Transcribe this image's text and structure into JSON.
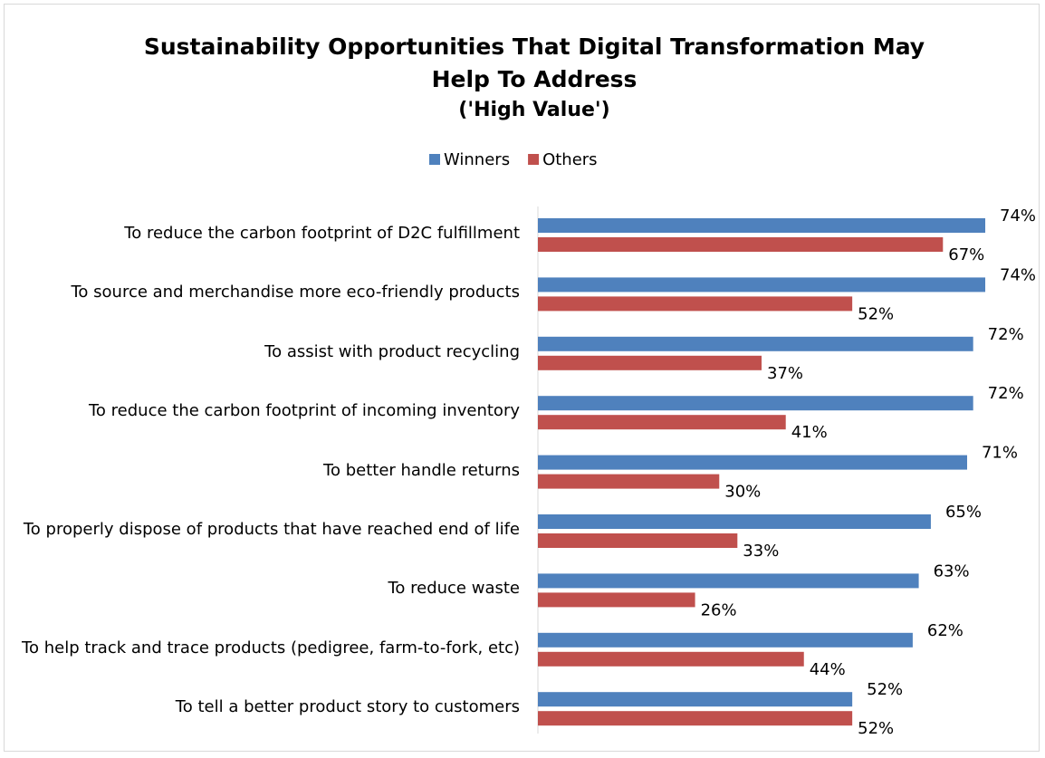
{
  "chart_data": {
    "type": "bar",
    "orientation": "horizontal",
    "title": "Sustainability Opportunities That Digital Transformation May Help To Address",
    "subtitle": "('High Value')",
    "legend_position": "top",
    "categories": [
      "To reduce the carbon footprint of D2C fulfillment",
      "To source and merchandise more eco-friendly products",
      "To assist with product recycling",
      "To reduce the carbon footprint of incoming inventory",
      "To better handle returns",
      "To properly dispose of products that have reached end of life",
      "To reduce waste",
      "To help track and trace products (pedigree, farm-to-fork, etc)",
      "To tell a better product story to customers"
    ],
    "series": [
      {
        "name": "Winners",
        "color": "#4f81bd",
        "values": [
          74,
          74,
          72,
          72,
          71,
          65,
          63,
          62,
          52
        ],
        "value_labels": [
          "74%",
          "74%",
          "72%",
          "72%",
          "71%",
          "65%",
          "63%",
          "62%",
          "52%"
        ]
      },
      {
        "name": "Others",
        "color": "#c0504d",
        "values": [
          67,
          52,
          37,
          41,
          30,
          33,
          26,
          44,
          52
        ],
        "value_labels": [
          "67%",
          "52%",
          "37%",
          "41%",
          "30%",
          "33%",
          "26%",
          "44%",
          "52%"
        ]
      }
    ]
  }
}
